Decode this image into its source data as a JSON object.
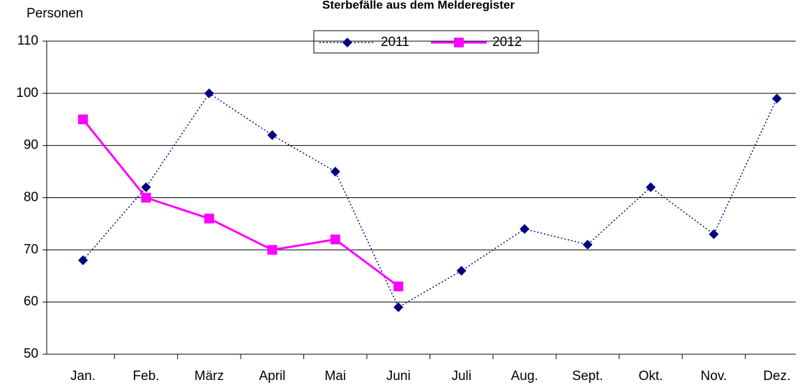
{
  "chart_data": {
    "type": "line",
    "title": "Sterbefälle aus dem Melderegister",
    "y_label": "Personen",
    "categories": [
      "Jan.",
      "Feb.",
      "März",
      "April",
      "Mai",
      "Juni",
      "Juli",
      "Aug.",
      "Sept.",
      "Okt.",
      "Nov.",
      "Dez."
    ],
    "series": [
      {
        "name": "2011",
        "color": "#000080",
        "values": [
          68,
          82,
          100,
          92,
          85,
          59,
          66,
          74,
          71,
          82,
          73,
          99
        ]
      },
      {
        "name": "2012",
        "color": "#ff00ff",
        "values": [
          95,
          80,
          76,
          70,
          72,
          63,
          null,
          null,
          null,
          null,
          null,
          null
        ]
      }
    ],
    "ylim": [
      50,
      110
    ],
    "yticks": [
      50,
      60,
      70,
      80,
      90,
      100,
      110
    ],
    "grid": true
  }
}
